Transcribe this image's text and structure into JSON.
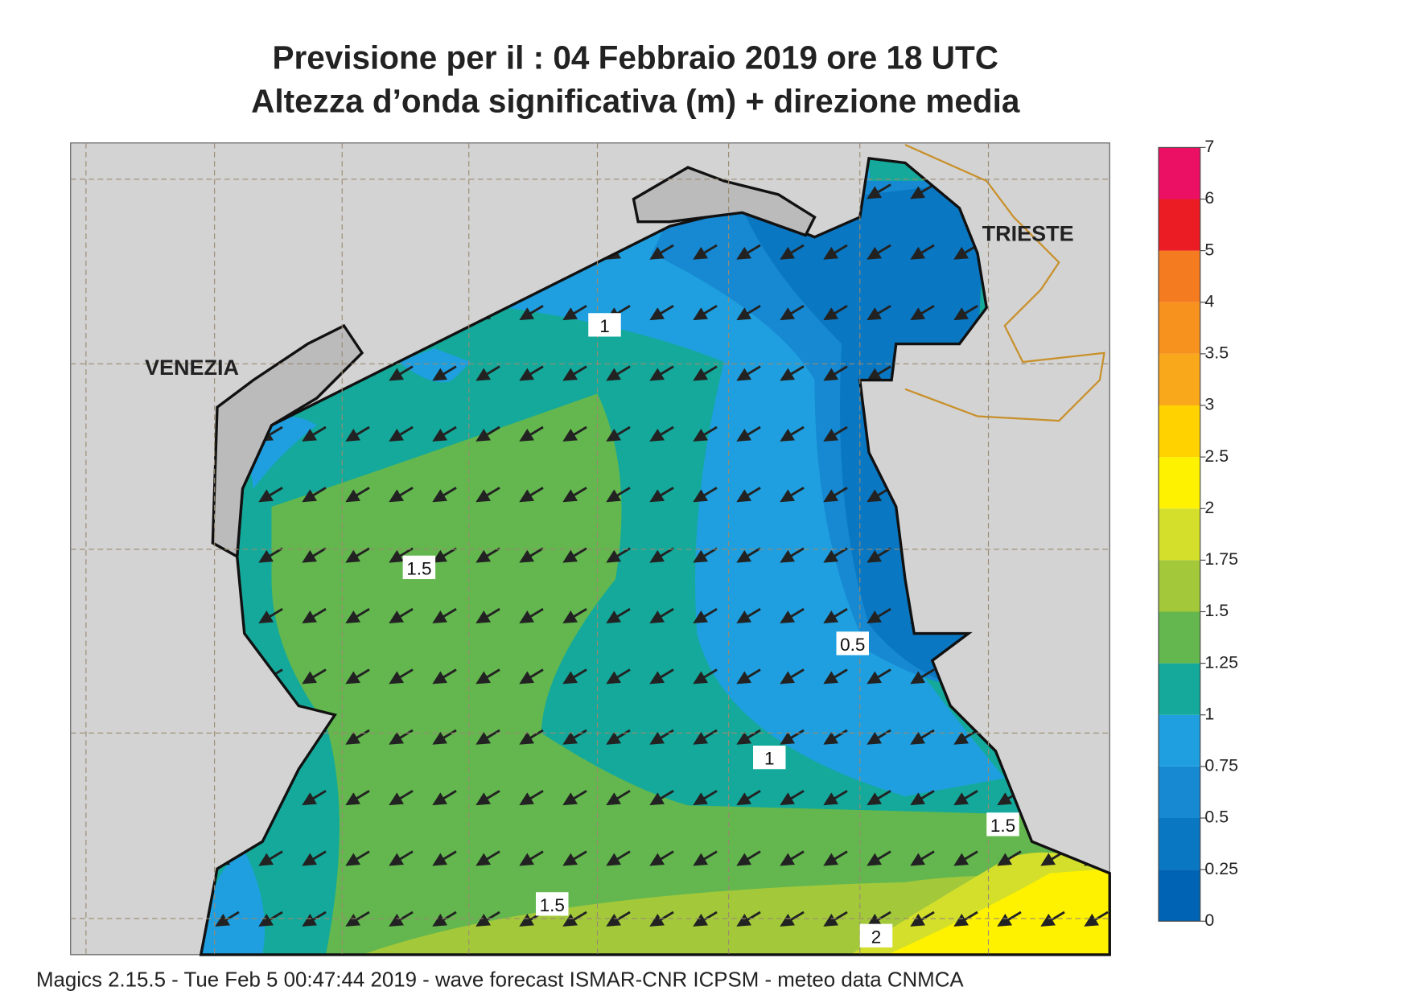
{
  "title": [
    "Previsione per il  :  04  Febbraio 2019   ore 18 UTC",
    "Altezza d’onda significativa (m) + direzione media"
  ],
  "cities": [
    "VENEZIA",
    "TRIESTE"
  ],
  "contour_labels": [
    "1",
    "1.5",
    "0.5",
    "1",
    "1.5",
    "1.5",
    "2"
  ],
  "colorbar": {
    "ticks": [
      0,
      0.25,
      0.5,
      0.75,
      1,
      1.25,
      1.5,
      1.75,
      2,
      2.5,
      3,
      3.5,
      4,
      5,
      6,
      7
    ],
    "colors": [
      "#0063b4",
      "#0a77c2",
      "#1689d2",
      "#1f9fdf",
      "#14a99b",
      "#63b74e",
      "#a3c93b",
      "#d3df2b",
      "#fff200",
      "#ffd200",
      "#f9a81b",
      "#f7921e",
      "#f47b20",
      "#ec1c24",
      "#ec1065"
    ]
  },
  "footer": "Magics 2.15.5 - Tue Feb  5 00:47:44 2019 - wave forecast  ISMAR-CNR  ICPSM - meteo data   CNMCA"
}
